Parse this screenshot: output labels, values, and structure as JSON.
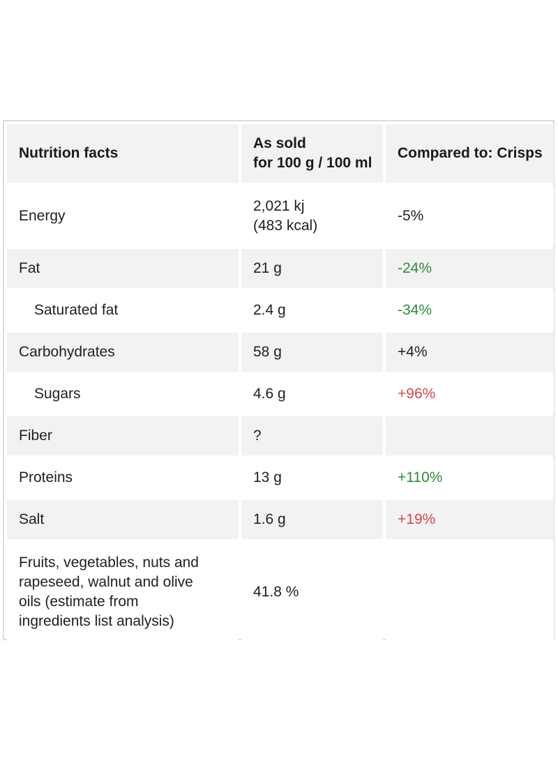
{
  "header": {
    "col1": "Nutrition facts",
    "col2_line1": "As sold",
    "col2_line2": "for 100 g / 100 ml",
    "col3": "Compared to: Crisps"
  },
  "rows": {
    "energy": {
      "name": "Energy",
      "value_line1": "2,021 kj",
      "value_line2": "(483 kcal)",
      "compare": "-5%"
    },
    "fat": {
      "name": "Fat",
      "value": "21 g",
      "compare": "-24%"
    },
    "saturated_fat": {
      "name": "Saturated fat",
      "value": "2.4 g",
      "compare": "-34%"
    },
    "carbohydrates": {
      "name": "Carbohydrates",
      "value": "58 g",
      "compare": "+4%"
    },
    "sugars": {
      "name": "Sugars",
      "value": "4.6 g",
      "compare": "+96%"
    },
    "fiber": {
      "name": "Fiber",
      "value": "?",
      "compare": ""
    },
    "proteins": {
      "name": "Proteins",
      "value": "13 g",
      "compare": "+110%"
    },
    "salt": {
      "name": "Salt",
      "value": "1.6 g",
      "compare": "+19%"
    },
    "fruits": {
      "name_line1": "Fruits, vegetables, nuts and",
      "name_line2": "rapeseed, walnut and olive",
      "name_line3": "oils (estimate from",
      "name_line4": "ingredients list analysis)",
      "value": "41.8 %",
      "compare": ""
    }
  },
  "colors": {
    "better": "#2e8b3e",
    "worse": "#d9474d",
    "row_shade": "#f2f2f2",
    "border": "#dcdcdc"
  }
}
